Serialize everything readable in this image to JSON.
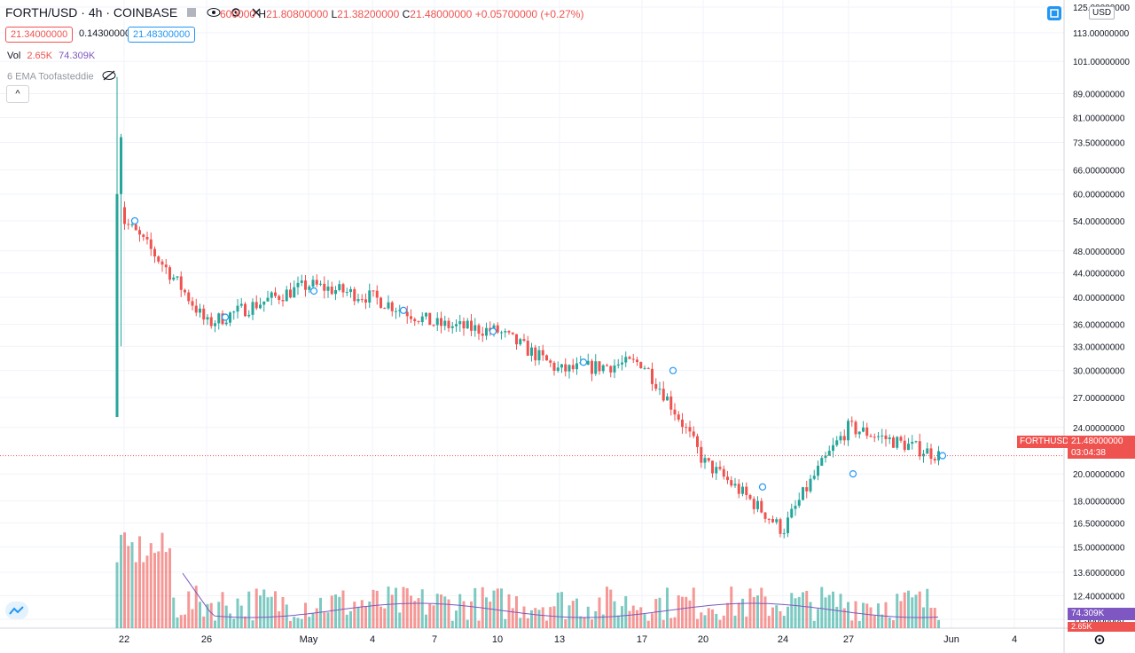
{
  "legend": {
    "symbol": "FORTH/USD · 4h · COINBASE",
    "open": "600000",
    "high_label": "H",
    "high": "21.80800000",
    "low_label": "L",
    "low": "21.38200000",
    "close_label": "C",
    "close": "21.48000000",
    "change": "+0.05700000 (+0.27%)",
    "bid": "21.34000000",
    "spread": "0.14300000",
    "ask": "21.48300000",
    "vol_label": "Vol",
    "vol_value": "2.65K",
    "vol_ma": "74.309K",
    "ema_label": "6 EMA Toofasteddie",
    "collapse_icon": "^"
  },
  "axis": {
    "currency": "USD",
    "symbol_tag": "FORTHUSD",
    "last_price": "21.48000000",
    "countdown": "03:04:38",
    "vol_ma_tag": "74.309K",
    "vol_tag": "2.65K",
    "y_ticks": [
      "125.00000000",
      "113.00000000",
      "101.00000000",
      "89.00000000",
      "81.00000000",
      "73.50000000",
      "66.00000000",
      "60.00000000",
      "54.00000000",
      "48.00000000",
      "44.00000000",
      "40.00000000",
      "36.00000000",
      "33.00000000",
      "30.00000000",
      "27.00000000",
      "24.00000000",
      "20.00000000",
      "18.00000000",
      "16.50000000",
      "15.00000000",
      "13.60000000",
      "12.40000000",
      "11.30000000"
    ],
    "x_ticks": [
      "22",
      "26",
      "May",
      "4",
      "7",
      "10",
      "13",
      "17",
      "20",
      "24",
      "27",
      "Jun",
      "4"
    ]
  },
  "colors": {
    "up": "#26a69a",
    "down": "#ef5350",
    "ema": "#7e57c2",
    "grid": "#f0f3fa",
    "accent": "#2196f3"
  },
  "icons": {
    "eye": "eye-icon",
    "eye_off": "eye-off-icon",
    "settings": "gear-icon",
    "logo": "tradingview-logo-icon",
    "auto_scale": "auto-scale-icon"
  },
  "chart_data": {
    "type": "candlestick",
    "title": "FORTH/USD · 4h · COINBASE",
    "y_scale": "log",
    "ylim": [
      11.3,
      125
    ],
    "last_price": 21.48,
    "x_ticks": [
      "22",
      "26",
      "May",
      "4",
      "7",
      "10",
      "13",
      "17",
      "20",
      "24",
      "27",
      "Jun",
      "4"
    ],
    "key_closes_approx": [
      {
        "x": "22",
        "close": 54
      },
      {
        "x": "26",
        "close": 36
      },
      {
        "x": "May",
        "close": 42
      },
      {
        "x": "4",
        "close": 40
      },
      {
        "x": "7",
        "close": 36
      },
      {
        "x": "10",
        "close": 35
      },
      {
        "x": "13",
        "close": 30
      },
      {
        "x": "17",
        "close": 31
      },
      {
        "x": "20",
        "close": 21
      },
      {
        "x": "24",
        "close": 16
      },
      {
        "x": "27",
        "close": 24
      },
      {
        "x": "Jun",
        "close": 21.48
      }
    ],
    "volume_ma_last": "74.309K",
    "volume_last": "2.65K"
  }
}
